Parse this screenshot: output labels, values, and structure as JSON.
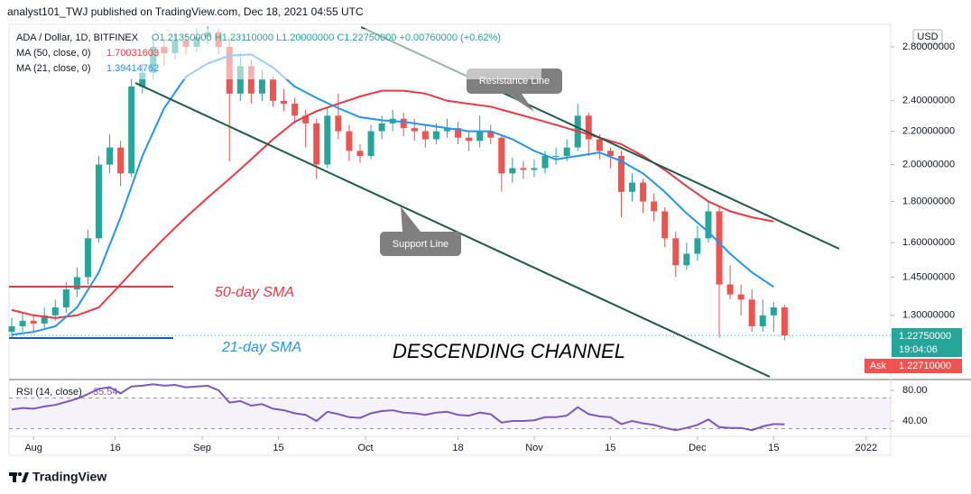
{
  "header": {
    "text": "analyst101_TWJ published on TradingView.com, Dec 18, 2021 04:55 UTC"
  },
  "footer": {
    "brand": "TradingView"
  },
  "chart_data": [
    {
      "type": "candlestick",
      "symbol": "ADA / Dollar, 1D, BITFINEX",
      "ohlc_label": "O1.21350000 H1.23110000 L1.20000000 C1.22750000 +0.00760000 (+0.62%)",
      "currency": "USD",
      "log_scale": true,
      "up_color": "#26a69a",
      "down_color": "#ef5350",
      "x": [
        -4,
        -2,
        0,
        2,
        4,
        6,
        8,
        10,
        12,
        14,
        16,
        18,
        20,
        22,
        24,
        26,
        28,
        30,
        32,
        34,
        36,
        38,
        40,
        42,
        44,
        46,
        48,
        50,
        52,
        54,
        56,
        58,
        60,
        62,
        64,
        66,
        68,
        70,
        72,
        74,
        76,
        78,
        80,
        82,
        84,
        86,
        88,
        90,
        92,
        94,
        96,
        98,
        100,
        102,
        104,
        106,
        108,
        110,
        112,
        114,
        116,
        118,
        120,
        122,
        124,
        126,
        128,
        130,
        132,
        134,
        136,
        138
      ],
      "open": [
        1.24,
        1.26,
        1.28,
        1.27,
        1.3,
        1.33,
        1.4,
        1.45,
        1.62,
        2.0,
        2.1,
        1.95,
        2.5,
        2.6,
        2.8,
        2.75,
        2.85,
        2.8,
        2.88,
        2.92,
        2.8,
        2.45,
        2.65,
        2.45,
        2.55,
        2.4,
        2.38,
        2.3,
        2.25,
        2.0,
        2.3,
        2.2,
        2.08,
        2.05,
        2.2,
        2.25,
        2.28,
        2.22,
        2.2,
        2.15,
        2.2,
        2.22,
        2.16,
        2.14,
        2.2,
        2.16,
        1.95,
        1.98,
        1.97,
        1.98,
        2.05,
        2.05,
        2.1,
        2.3,
        2.15,
        2.08,
        2.05,
        1.85,
        1.9,
        1.8,
        1.75,
        1.62,
        1.5,
        1.55,
        1.62,
        1.75,
        1.42,
        1.38,
        1.36,
        1.26,
        1.3,
        1.33
      ],
      "high": [
        1.29,
        1.31,
        1.3,
        1.33,
        1.36,
        1.43,
        1.49,
        1.66,
        2.05,
        2.18,
        2.14,
        2.56,
        2.66,
        2.88,
        2.86,
        2.92,
        2.9,
        2.95,
        2.97,
        2.95,
        2.86,
        2.75,
        2.7,
        2.62,
        2.58,
        2.48,
        2.42,
        2.34,
        2.28,
        2.35,
        2.45,
        2.24,
        2.12,
        2.24,
        2.3,
        2.34,
        2.32,
        2.28,
        2.24,
        2.25,
        2.28,
        2.26,
        2.2,
        2.3,
        2.24,
        2.18,
        2.04,
        2.02,
        2.03,
        2.08,
        2.1,
        2.15,
        2.38,
        2.32,
        2.18,
        2.1,
        2.08,
        1.95,
        1.92,
        1.84,
        1.77,
        1.65,
        1.6,
        1.68,
        1.8,
        1.77,
        1.5,
        1.42,
        1.4,
        1.36,
        1.35,
        1.34
      ],
      "low": [
        1.22,
        1.24,
        1.24,
        1.25,
        1.28,
        1.31,
        1.37,
        1.42,
        1.6,
        1.95,
        1.88,
        1.93,
        2.45,
        2.55,
        2.65,
        2.7,
        2.74,
        2.76,
        2.82,
        2.74,
        2.02,
        2.4,
        2.38,
        2.4,
        2.36,
        2.33,
        2.25,
        2.1,
        1.92,
        1.98,
        2.15,
        2.02,
        2.01,
        2.03,
        2.15,
        2.2,
        2.17,
        2.14,
        2.1,
        2.12,
        2.16,
        2.12,
        2.08,
        2.1,
        2.12,
        1.85,
        1.9,
        1.92,
        1.93,
        1.95,
        2.0,
        2.02,
        2.08,
        2.05,
        2.03,
        1.98,
        1.72,
        1.8,
        1.74,
        1.7,
        1.58,
        1.45,
        1.48,
        1.52,
        1.6,
        1.22,
        1.36,
        1.3,
        1.24,
        1.24,
        1.24,
        1.21
      ],
      "close": [
        1.26,
        1.28,
        1.27,
        1.3,
        1.33,
        1.4,
        1.45,
        1.62,
        2.0,
        2.1,
        1.95,
        2.5,
        2.6,
        2.8,
        2.75,
        2.85,
        2.8,
        2.88,
        2.92,
        2.8,
        2.45,
        2.65,
        2.45,
        2.55,
        2.4,
        2.38,
        2.3,
        2.25,
        2.0,
        2.3,
        2.2,
        2.08,
        2.05,
        2.2,
        2.25,
        2.28,
        2.22,
        2.2,
        2.15,
        2.2,
        2.22,
        2.16,
        2.14,
        2.2,
        2.16,
        1.95,
        1.98,
        1.97,
        1.98,
        2.05,
        2.05,
        2.1,
        2.3,
        2.15,
        2.08,
        2.05,
        1.85,
        1.9,
        1.8,
        1.75,
        1.62,
        1.5,
        1.55,
        1.62,
        1.75,
        1.42,
        1.38,
        1.36,
        1.26,
        1.3,
        1.33,
        1.2275
      ],
      "last_label": "1.22750000",
      "countdown": "19:04:06",
      "ask_name": "Ask",
      "ask_label": "1.22710000",
      "series": [
        {
          "name": "MA (50, close, 0)",
          "color": "#f23645",
          "last_label": "1.70031603",
          "x": [
            -4,
            0,
            4,
            8,
            12,
            16,
            20,
            24,
            28,
            32,
            36,
            40,
            44,
            48,
            52,
            56,
            60,
            64,
            68,
            72,
            76,
            80,
            84,
            88,
            92,
            96,
            100,
            104,
            108,
            112,
            116,
            120,
            124,
            128,
            132,
            136
          ],
          "values": [
            1.32,
            1.3,
            1.29,
            1.3,
            1.33,
            1.42,
            1.52,
            1.62,
            1.72,
            1.82,
            1.92,
            2.03,
            2.15,
            2.26,
            2.33,
            2.38,
            2.43,
            2.47,
            2.47,
            2.45,
            2.4,
            2.38,
            2.36,
            2.32,
            2.28,
            2.24,
            2.2,
            2.16,
            2.12,
            2.05,
            1.97,
            1.88,
            1.8,
            1.75,
            1.72,
            1.7
          ]
        },
        {
          "name": "MA (21, close, 0)",
          "color": "#2196f3",
          "last_label": "1.39414762",
          "x": [
            -4,
            0,
            4,
            8,
            12,
            16,
            20,
            24,
            28,
            32,
            36,
            40,
            44,
            48,
            52,
            56,
            60,
            64,
            68,
            72,
            76,
            80,
            84,
            88,
            92,
            96,
            100,
            104,
            108,
            112,
            116,
            120,
            124,
            128,
            132,
            136
          ],
          "values": [
            1.23,
            1.24,
            1.26,
            1.33,
            1.47,
            1.72,
            2.05,
            2.35,
            2.57,
            2.67,
            2.73,
            2.74,
            2.64,
            2.5,
            2.42,
            2.35,
            2.29,
            2.27,
            2.26,
            2.24,
            2.22,
            2.2,
            2.2,
            2.15,
            2.08,
            2.03,
            2.05,
            2.07,
            2.02,
            1.95,
            1.85,
            1.74,
            1.65,
            1.55,
            1.47,
            1.41
          ]
        }
      ],
      "xlim": [
        -4.5,
        157.5
      ],
      "xticks": [
        {
          "value": 0,
          "label": "Aug"
        },
        {
          "value": 15,
          "label": "16"
        },
        {
          "value": 31,
          "label": "Sep"
        },
        {
          "value": 45,
          "label": "15"
        },
        {
          "value": 61,
          "label": "Oct"
        },
        {
          "value": 78,
          "label": "18"
        },
        {
          "value": 92,
          "label": "Nov"
        },
        {
          "value": 106,
          "label": "15"
        },
        {
          "value": 122,
          "label": "Dec"
        },
        {
          "value": 136,
          "label": "15"
        },
        {
          "value": 153,
          "label": "2022"
        }
      ],
      "ylim": [
        1.085,
        2.963
      ],
      "yticks": [
        {
          "value": 1.3,
          "label": "1.30000000"
        },
        {
          "value": 1.45,
          "label": "1.45000000"
        },
        {
          "value": 1.6,
          "label": "1.60000000"
        },
        {
          "value": 1.8,
          "label": "1.80000000"
        },
        {
          "value": 2.0,
          "label": "2.00000000"
        },
        {
          "value": 2.2,
          "label": "2.20000000"
        },
        {
          "value": 2.4,
          "label": "2.40000000"
        },
        {
          "value": 2.8,
          "label": "2.80000000"
        }
      ],
      "annotations": {
        "resistance": "Resistance Line",
        "support": "Support Line",
        "sma50": "50-day SMA",
        "sma21": "21-day SMA",
        "channel": "DESCENDING CHANNEL"
      }
    },
    {
      "type": "line",
      "x": [
        -4,
        -2,
        0,
        2,
        4,
        6,
        8,
        10,
        12,
        14,
        16,
        18,
        20,
        22,
        24,
        26,
        28,
        30,
        32,
        34,
        36,
        38,
        40,
        42,
        44,
        46,
        48,
        50,
        52,
        54,
        56,
        58,
        60,
        62,
        64,
        66,
        68,
        70,
        72,
        74,
        76,
        78,
        80,
        82,
        84,
        86,
        88,
        90,
        92,
        94,
        96,
        98,
        100,
        102,
        104,
        106,
        108,
        110,
        112,
        114,
        116,
        118,
        120,
        122,
        124,
        126,
        128,
        130,
        132,
        134,
        136,
        138
      ],
      "series": [
        {
          "name": "RSI (14, close)",
          "color": "#7e57c2",
          "last_label": "35.54",
          "values": [
            55,
            57,
            56,
            59,
            61,
            65,
            69,
            75,
            82,
            84,
            76,
            85,
            86,
            88,
            86,
            87,
            84,
            85,
            86,
            80,
            64,
            66,
            60,
            62,
            56,
            54,
            50,
            48,
            40,
            52,
            49,
            45,
            44,
            50,
            53,
            54,
            51,
            50,
            48,
            51,
            52,
            48,
            47,
            51,
            49,
            38,
            40,
            40,
            41,
            45,
            45,
            47,
            58,
            49,
            46,
            45,
            36,
            40,
            37,
            35,
            31,
            28,
            31,
            35,
            42,
            32,
            31,
            31,
            28,
            33,
            36,
            35.54
          ]
        }
      ],
      "band": [
        30,
        70
      ],
      "band_color": "#7e57c2",
      "ylim": [
        21.2,
        89.4
      ],
      "yticks": [
        {
          "value": 40,
          "label": "40.00"
        },
        {
          "value": 80,
          "label": "80.00"
        }
      ]
    }
  ]
}
